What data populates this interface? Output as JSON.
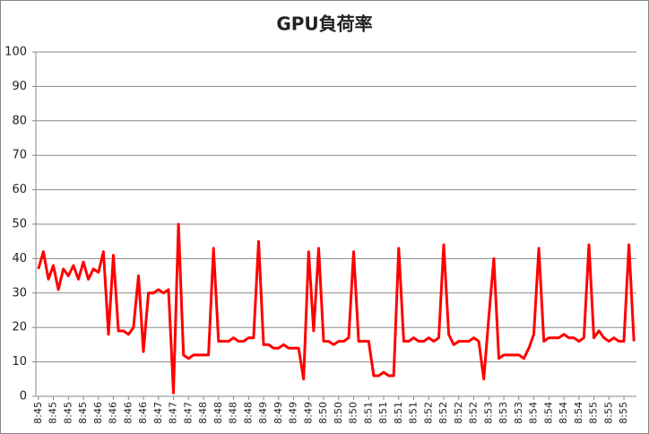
{
  "chart_data": {
    "type": "line",
    "title": "GPU負荷率",
    "categories": [
      "8:45",
      null,
      null,
      "8:45",
      null,
      null,
      "8:45",
      null,
      null,
      "8:45",
      null,
      null,
      "8:46",
      null,
      null,
      "8:46",
      null,
      null,
      "8:46",
      null,
      null,
      "8:46",
      null,
      null,
      "8:47",
      null,
      null,
      "8:47",
      null,
      null,
      "8:47",
      null,
      null,
      "8:48",
      null,
      null,
      "8:48",
      null,
      null,
      "8:48",
      null,
      null,
      "8:48",
      null,
      null,
      "8:49",
      null,
      null,
      "8:49",
      null,
      null,
      "8:49",
      null,
      null,
      "8:49",
      null,
      null,
      "8:50",
      null,
      null,
      "8:50",
      null,
      null,
      "8:50",
      null,
      null,
      "8:51",
      null,
      null,
      "8:51",
      null,
      null,
      "8:51",
      null,
      null,
      "8:51",
      null,
      null,
      "8:52",
      null,
      null,
      "8:52",
      null,
      null,
      "8:52",
      null,
      null,
      "8:52",
      null,
      null,
      "8:53",
      null,
      null,
      "8:53",
      null,
      null,
      "8:53",
      null,
      null,
      "8:54",
      null,
      null,
      "8:54",
      null,
      null,
      "8:54",
      null,
      null,
      "8:54",
      null,
      null,
      "8:55",
      null,
      null,
      "8:55",
      null,
      null,
      "8:55",
      null,
      null
    ],
    "values": [
      37,
      42,
      34,
      38,
      31,
      37,
      35,
      38,
      34,
      39,
      34,
      37,
      36,
      42,
      18,
      41,
      19,
      19,
      18,
      20,
      35,
      13,
      30,
      30,
      31,
      30,
      31,
      1,
      50,
      12,
      11,
      12,
      12,
      12,
      12,
      43,
      16,
      16,
      16,
      17,
      16,
      16,
      17,
      17,
      45,
      15,
      15,
      14,
      14,
      15,
      14,
      14,
      14,
      5,
      42,
      19,
      43,
      16,
      16,
      15,
      16,
      16,
      17,
      42,
      16,
      16,
      16,
      6,
      6,
      7,
      6,
      6,
      43,
      16,
      16,
      17,
      16,
      16,
      17,
      16,
      17,
      44,
      18,
      15,
      16,
      16,
      16,
      17,
      16,
      5,
      23,
      40,
      11,
      12,
      12,
      12,
      12,
      11,
      14,
      18,
      43,
      16,
      17,
      17,
      17,
      18,
      17,
      17,
      16,
      17,
      44,
      17,
      19,
      17,
      16,
      17,
      16,
      16,
      44,
      16
    ],
    "color": "#ff0000",
    "ylim": [
      0,
      100
    ],
    "yticks": [
      0,
      10,
      20,
      30,
      40,
      50,
      60,
      70,
      80,
      90,
      100
    ],
    "grid": true
  }
}
